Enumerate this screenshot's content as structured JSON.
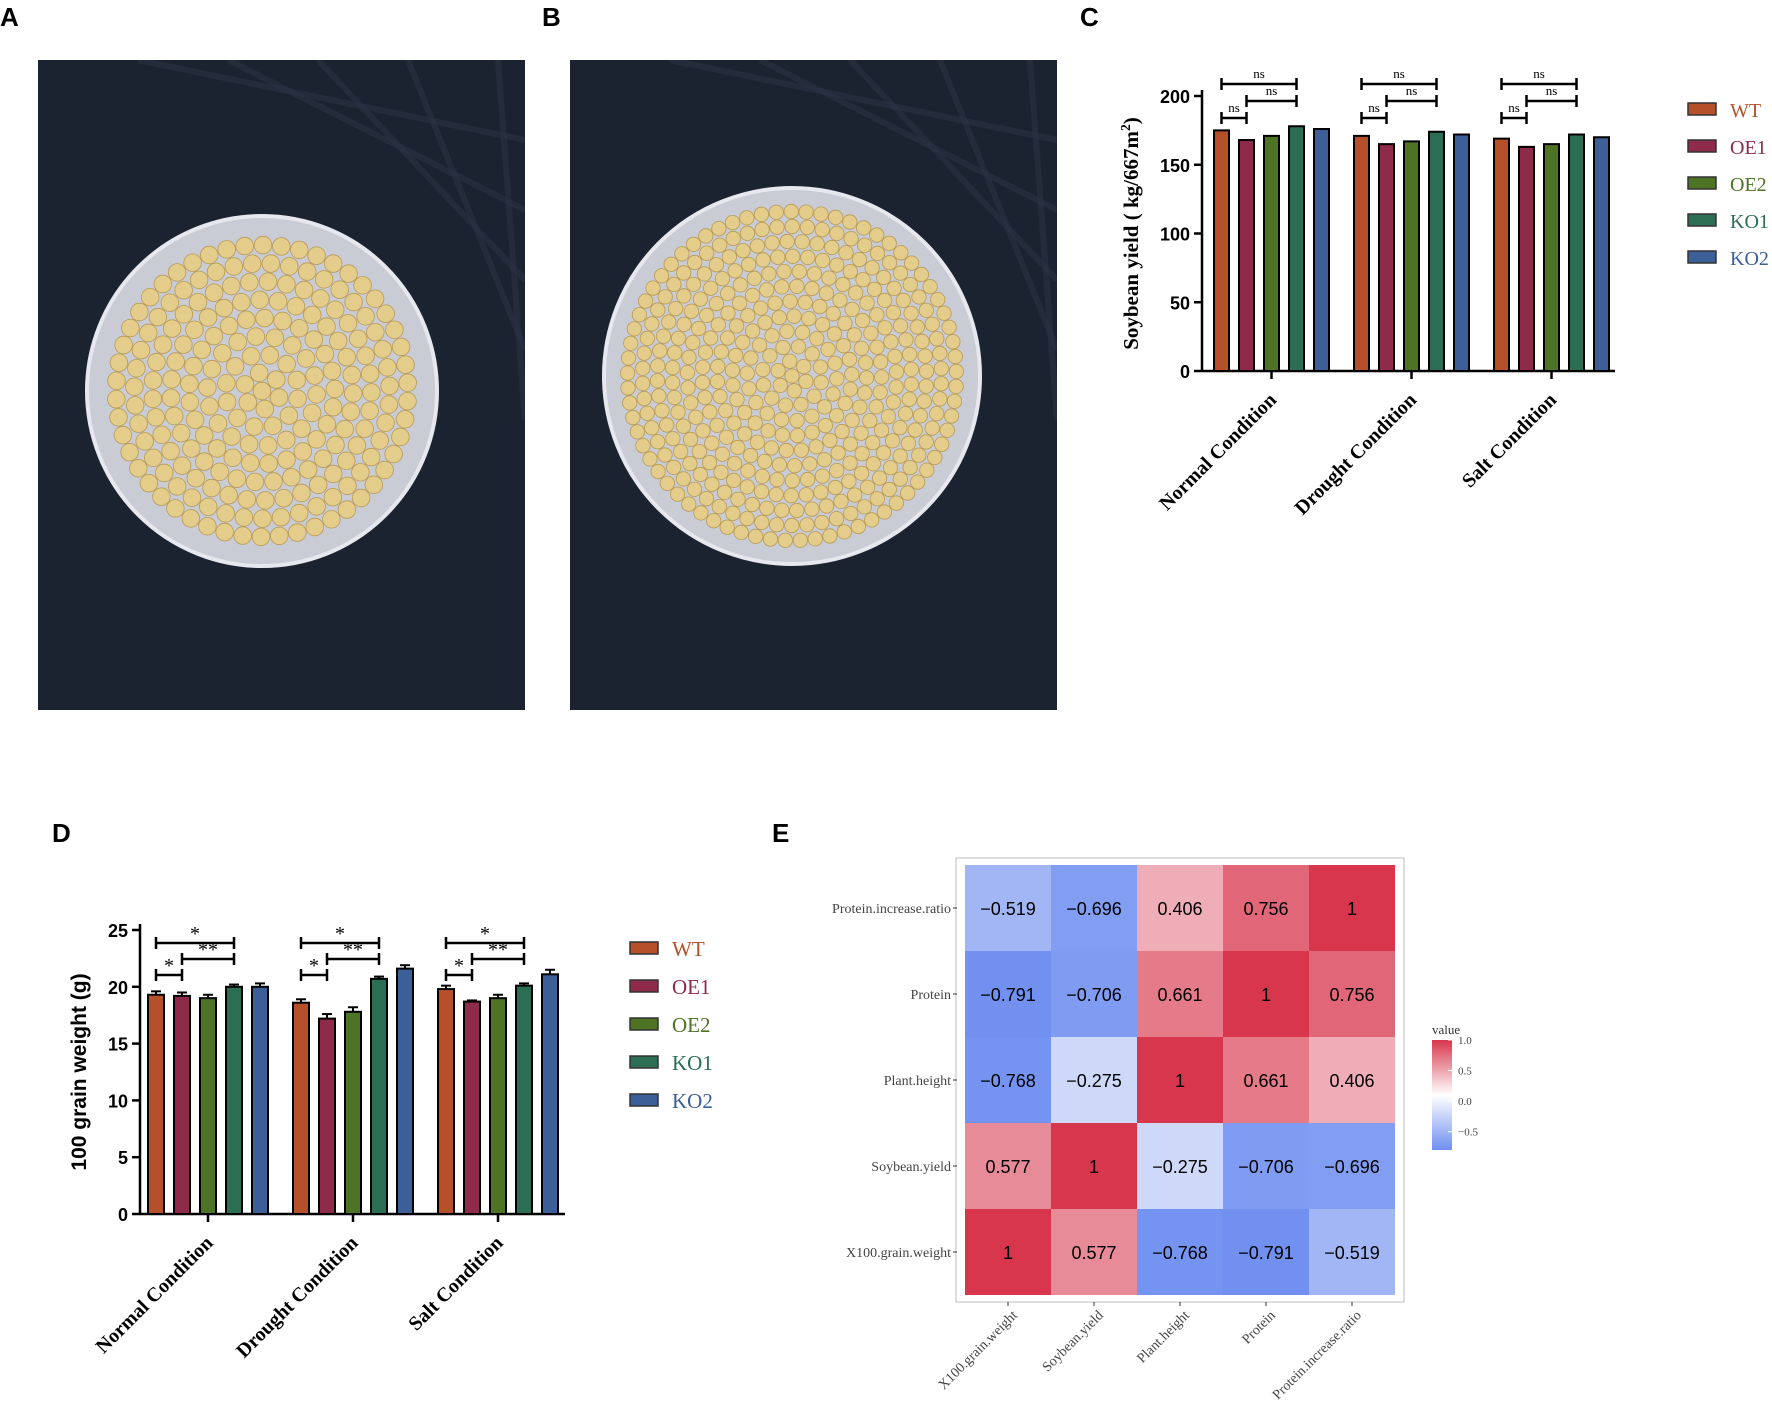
{
  "panels": {
    "a": "A",
    "b": "B",
    "c": "C",
    "d": "D",
    "e": "E"
  },
  "colors": {
    "WT": "#b5502a",
    "OE1": "#8e2a4a",
    "OE2": "#4e7324",
    "KO1": "#2b6e54",
    "KO2": "#3d5f97",
    "photo_bg": "#1c2330",
    "dish": "#c9ccd4",
    "bean": "#e4cc8a",
    "bean_dark": "#b89a55"
  },
  "photos": {
    "a": {
      "name": "soybean-dish-photo-a",
      "rings": 9
    },
    "b": {
      "name": "soybean-dish-photo-b",
      "rings": 12
    }
  },
  "chart_data": [
    {
      "id": "C",
      "type": "bar",
      "ylabel": "Soybean yield ( kg/667m²)",
      "ylabel_main": "Soybean yield ( kg/667m",
      "ylabel_sup": "2",
      "ylabel_end": ")",
      "ylim": [
        0,
        200
      ],
      "yticks": [
        0,
        50,
        100,
        150,
        200
      ],
      "categories": [
        "Normal Condition",
        "Drought Condition",
        "Salt Condition"
      ],
      "series": [
        {
          "name": "WT",
          "values": [
            175,
            171,
            169
          ]
        },
        {
          "name": "OE1",
          "values": [
            168,
            165,
            163
          ]
        },
        {
          "name": "OE2",
          "values": [
            171,
            167,
            165
          ]
        },
        {
          "name": "KO1",
          "values": [
            178,
            174,
            172
          ]
        },
        {
          "name": "KO2",
          "values": [
            176,
            172,
            170
          ]
        }
      ],
      "error": [],
      "significance": [
        {
          "group": 0,
          "from": 0,
          "to": 3,
          "label": "ns",
          "level": 2
        },
        {
          "group": 0,
          "from": 1,
          "to": 3,
          "label": "ns",
          "level": 1
        },
        {
          "group": 0,
          "from": 0,
          "to": 1,
          "label": "ns",
          "level": 0
        },
        {
          "group": 1,
          "from": 0,
          "to": 3,
          "label": "ns",
          "level": 2
        },
        {
          "group": 1,
          "from": 1,
          "to": 3,
          "label": "ns",
          "level": 1
        },
        {
          "group": 1,
          "from": 0,
          "to": 1,
          "label": "ns",
          "level": 0
        },
        {
          "group": 2,
          "from": 0,
          "to": 3,
          "label": "ns",
          "level": 2
        },
        {
          "group": 2,
          "from": 1,
          "to": 3,
          "label": "ns",
          "level": 1
        },
        {
          "group": 2,
          "from": 0,
          "to": 1,
          "label": "ns",
          "level": 0
        }
      ],
      "legend": [
        "WT",
        "OE1",
        "OE2",
        "KO1",
        "KO2"
      ]
    },
    {
      "id": "D",
      "type": "bar",
      "ylabel": "100 grain weight (g)",
      "ylim": [
        0,
        25
      ],
      "yticks": [
        0,
        5,
        10,
        15,
        20,
        25
      ],
      "categories": [
        "Normal Condition",
        "Drought Condition",
        "Salt Condition"
      ],
      "series": [
        {
          "name": "WT",
          "values": [
            19.3,
            18.6,
            19.8
          ]
        },
        {
          "name": "OE1",
          "values": [
            19.2,
            17.2,
            18.7
          ]
        },
        {
          "name": "OE2",
          "values": [
            19.0,
            17.8,
            19.0
          ]
        },
        {
          "name": "KO1",
          "values": [
            20.0,
            20.7,
            20.1
          ]
        },
        {
          "name": "KO2",
          "values": [
            20.0,
            21.6,
            21.1
          ]
        }
      ],
      "error": [
        [
          0.3,
          0.3,
          0.3
        ],
        [
          0.3,
          0.4,
          0.1
        ],
        [
          0.3,
          0.4,
          0.3
        ],
        [
          0.2,
          0.2,
          0.2
        ],
        [
          0.3,
          0.3,
          0.4
        ]
      ],
      "significance": [
        {
          "group": 0,
          "from": 0,
          "to": 3,
          "label": "*",
          "level": 2
        },
        {
          "group": 0,
          "from": 1,
          "to": 3,
          "label": "**",
          "level": 1
        },
        {
          "group": 0,
          "from": 0,
          "to": 1,
          "label": "*",
          "level": 0
        },
        {
          "group": 1,
          "from": 0,
          "to": 3,
          "label": "*",
          "level": 2
        },
        {
          "group": 1,
          "from": 1,
          "to": 3,
          "label": "**",
          "level": 1
        },
        {
          "group": 1,
          "from": 0,
          "to": 1,
          "label": "*",
          "level": 0
        },
        {
          "group": 2,
          "from": 0,
          "to": 3,
          "label": "*",
          "level": 2
        },
        {
          "group": 2,
          "from": 1,
          "to": 3,
          "label": "**",
          "level": 1
        },
        {
          "group": 2,
          "from": 0,
          "to": 1,
          "label": "*",
          "level": 0
        }
      ],
      "legend": [
        "WT",
        "OE1",
        "OE2",
        "KO1",
        "KO2"
      ]
    },
    {
      "id": "E",
      "type": "heatmap",
      "x_labels": [
        "X100.grain.weight",
        "Soybean.yield",
        "Plant.height",
        "Protein",
        "Protein.increase.ratio"
      ],
      "y_labels": [
        "Protein.increase.ratio",
        "Protein",
        "Plant.height",
        "Soybean.yield",
        "X100.grain.weight"
      ],
      "values": [
        [
          "-0.519",
          "-0.696",
          "0.406",
          "0.756",
          "1"
        ],
        [
          "-0.791",
          "-0.706",
          "0.661",
          "1",
          "0.756"
        ],
        [
          "-0.768",
          "-0.275",
          "1",
          "0.661",
          "0.406"
        ],
        [
          "0.577",
          "1",
          "-0.275",
          "-0.706",
          "-0.696"
        ],
        [
          "1",
          "0.577",
          "-0.768",
          "-0.791",
          "-0.519"
        ]
      ],
      "legend_title": "value",
      "legend_ticks": [
        "1.0",
        "0.5",
        "0.0",
        "−0.5"
      ],
      "legend_values": [
        1.0,
        0.5,
        0.0,
        -0.5
      ],
      "color_low": "#6f8ff0",
      "color_mid": "#ffffff",
      "color_high": "#d7364d"
    }
  ]
}
